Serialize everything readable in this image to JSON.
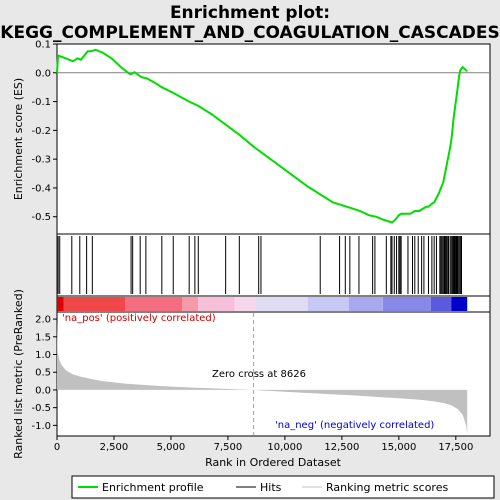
{
  "chart_data": {
    "type": "line",
    "title_line1": "Enrichment plot:",
    "title_line2": "KEGG_COMPLEMENT_AND_COAGULATION_CASCADES",
    "colors": {
      "es_line": "#00dd00",
      "hit_line": "#000000",
      "metric_fill": "#c0c0c0",
      "zero_cross_line": "#a0a0a0",
      "pos_color": "#ff0000",
      "neg_color": "#0000ff",
      "background": "#ffffff",
      "page_bg": "#e8e8e8"
    },
    "top_panel": {
      "ylabel": "Enrichment score (ES)",
      "ylim": [
        -0.56,
        0.1
      ],
      "yticks": [
        0.1,
        0.0,
        -0.1,
        -0.2,
        -0.3,
        -0.4,
        -0.5
      ],
      "ytick_labels": [
        "0.1",
        "0.0",
        "-0.1",
        "-0.2",
        "-0.3",
        "-0.4",
        "-0.5"
      ],
      "es_profile": {
        "x": [
          0,
          50,
          400,
          700,
          900,
          1050,
          1200,
          1350,
          1500,
          1700,
          2000,
          2400,
          2800,
          3200,
          3300,
          3400,
          3700,
          3950,
          4300,
          4600,
          5100,
          5800,
          6200,
          6800,
          7400,
          8000,
          8600,
          9200,
          9800,
          10400,
          11000,
          11600,
          12100,
          12500,
          12900,
          13300,
          13700,
          14000,
          14300,
          14500,
          14700,
          14850,
          15000,
          15100,
          15300,
          15500,
          15700,
          15900,
          16100,
          16200,
          16300,
          16450,
          16550,
          16650,
          16750,
          16850,
          16950,
          17000,
          17050,
          17100,
          17150,
          17200,
          17250,
          17300,
          17350,
          17400,
          17450,
          17500,
          17550,
          17600,
          17650,
          17700,
          17800,
          17900,
          18000
        ],
        "y": [
          0.0,
          0.06,
          0.05,
          0.04,
          0.05,
          0.045,
          0.06,
          0.075,
          0.075,
          0.08,
          0.07,
          0.05,
          0.02,
          -0.005,
          -0.003,
          0.002,
          -0.015,
          -0.02,
          -0.035,
          -0.05,
          -0.07,
          -0.1,
          -0.115,
          -0.145,
          -0.18,
          -0.215,
          -0.255,
          -0.29,
          -0.325,
          -0.36,
          -0.395,
          -0.425,
          -0.45,
          -0.46,
          -0.47,
          -0.48,
          -0.495,
          -0.5,
          -0.51,
          -0.515,
          -0.52,
          -0.51,
          -0.495,
          -0.49,
          -0.49,
          -0.49,
          -0.48,
          -0.48,
          -0.47,
          -0.465,
          -0.465,
          -0.455,
          -0.45,
          -0.435,
          -0.42,
          -0.4,
          -0.38,
          -0.36,
          -0.34,
          -0.32,
          -0.3,
          -0.28,
          -0.26,
          -0.235,
          -0.2,
          -0.16,
          -0.13,
          -0.1,
          -0.07,
          -0.04,
          -0.01,
          0.01,
          0.02,
          0.012,
          0.005
        ]
      }
    },
    "hits_panel": {
      "hit_positions": [
        50,
        120,
        650,
        1000,
        1300,
        1550,
        3250,
        3320,
        3650,
        3900,
        4600,
        5100,
        5800,
        6050,
        6200,
        7400,
        8000,
        8850,
        8950,
        11550,
        12400,
        12650,
        12850,
        13250,
        13850,
        13950,
        14450,
        14650,
        14700,
        14800,
        14900,
        15000,
        15050,
        15100,
        15400,
        15600,
        15700,
        15850,
        16000,
        16100,
        16300,
        16450,
        16550,
        16650,
        16800,
        16850,
        16900,
        16950,
        17000,
        17020,
        17060,
        17100,
        17150,
        17180,
        17250,
        17300,
        17350,
        17400,
        17430,
        17460,
        17500,
        17520,
        17550,
        17580,
        17600,
        17650,
        17700,
        17750
      ]
    },
    "bar_panel": {
      "segments": [
        {
          "from": 0,
          "to": 300,
          "color": "#dd0000"
        },
        {
          "from": 300,
          "to": 3000,
          "color": "#f04848"
        },
        {
          "from": 3000,
          "to": 5500,
          "color": "#f46e80"
        },
        {
          "from": 5500,
          "to": 6200,
          "color": "#f79aa8"
        },
        {
          "from": 6200,
          "to": 7800,
          "color": "#f8c0d8"
        },
        {
          "from": 7800,
          "to": 8700,
          "color": "#f6d8ea"
        },
        {
          "from": 8700,
          "to": 11000,
          "color": "#e0dcf4"
        },
        {
          "from": 11000,
          "to": 12800,
          "color": "#c8c8f4"
        },
        {
          "from": 12800,
          "to": 14300,
          "color": "#a8a8ee"
        },
        {
          "from": 14300,
          "to": 16400,
          "color": "#8888e8"
        },
        {
          "from": 16400,
          "to": 17300,
          "color": "#5a5ae0"
        },
        {
          "from": 17300,
          "to": 18000,
          "color": "#0000cc"
        }
      ]
    },
    "bottom_panel": {
      "ylabel": "Ranked list metric (PreRanked)",
      "xlabel": "Rank in Ordered Dataset",
      "ylim": [
        -1.3,
        2.2
      ],
      "yticks": [
        2.0,
        1.5,
        1.0,
        0.5,
        0.0,
        -0.5,
        -1.0
      ],
      "ytick_labels": [
        "2.0",
        "1.5",
        "1.0",
        "0.5",
        "0.0",
        "-0.5",
        "-1.0"
      ],
      "xlim": [
        0,
        19000
      ],
      "xticks": [
        0,
        2500,
        5000,
        7500,
        10000,
        12500,
        15000,
        17500
      ],
      "xtick_labels": [
        "0",
        "2,500",
        "5,000",
        "7,500",
        "10,000",
        "12,500",
        "15,000",
        "17,500"
      ],
      "metric": {
        "x": [
          0,
          30,
          100,
          200,
          400,
          700,
          1000,
          1500,
          2000,
          3000,
          4000,
          5000,
          6000,
          7000,
          8000,
          8626,
          9000,
          10000,
          11000,
          12000,
          13000,
          14000,
          15000,
          16000,
          16500,
          17000,
          17300,
          17600,
          17800,
          17950,
          18000
        ],
        "y": [
          2.0,
          1.05,
          0.85,
          0.7,
          0.55,
          0.44,
          0.38,
          0.31,
          0.25,
          0.18,
          0.13,
          0.095,
          0.065,
          0.04,
          0.015,
          0.0,
          -0.015,
          -0.05,
          -0.085,
          -0.12,
          -0.155,
          -0.195,
          -0.235,
          -0.28,
          -0.32,
          -0.37,
          -0.43,
          -0.55,
          -0.7,
          -1.0,
          -1.25
        ]
      },
      "zero_cross": 8626,
      "zero_cross_label": "Zero cross at 8626",
      "pos_label": "'na_pos' (positively correlated)",
      "neg_label": "'na_neg' (negatively correlated)"
    },
    "legend": {
      "entries": [
        "Enrichment profile",
        "Hits",
        "Ranking metric scores"
      ]
    }
  }
}
